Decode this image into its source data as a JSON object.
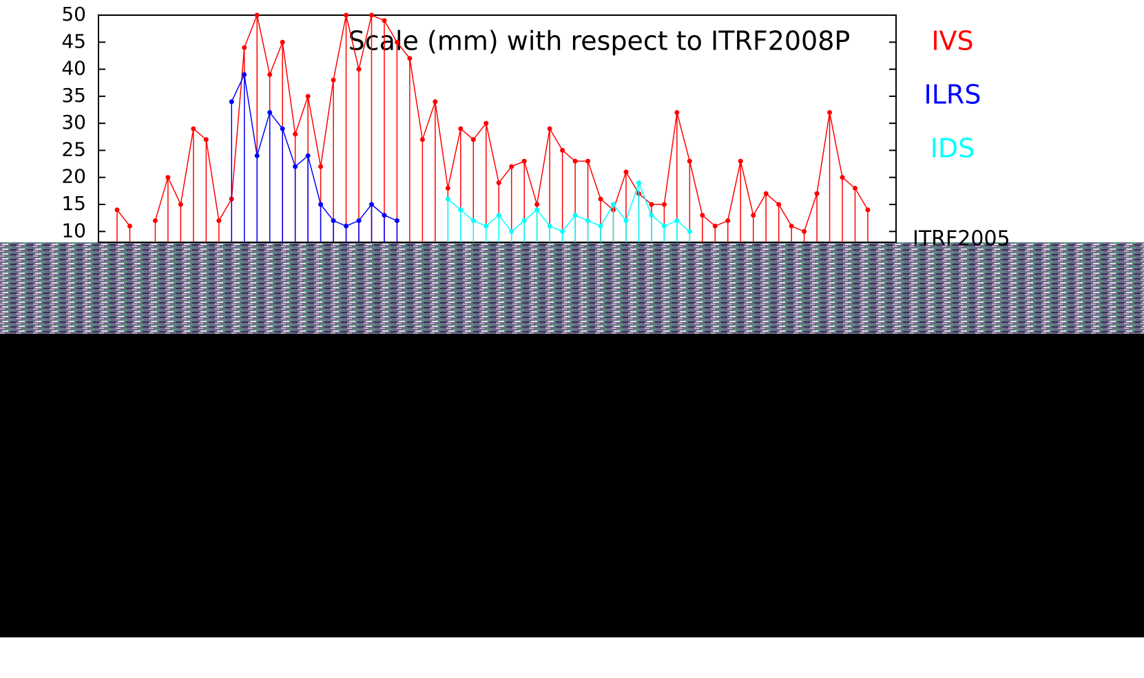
{
  "chart_data": {
    "type": "lollipop",
    "title": "Scale (mm) with respect to ITRF2008P",
    "annotation": "ITRF2005",
    "categories": [
      null,
      null,
      null,
      null,
      null,
      null,
      null,
      null,
      null,
      null,
      null,
      null,
      null,
      null,
      null,
      null,
      null,
      null,
      null,
      null,
      null,
      null,
      null,
      null,
      null,
      null,
      null,
      null,
      null,
      null,
      null,
      null,
      null,
      null,
      null,
      null,
      null,
      null,
      null,
      null,
      null,
      null,
      null,
      null,
      null,
      null,
      null,
      null,
      null,
      null,
      null,
      null,
      null,
      null,
      null,
      null,
      null,
      null,
      null,
      null
    ],
    "ylim": [
      8,
      50
    ],
    "yticks": [
      10,
      15,
      20,
      25,
      30,
      35,
      40,
      45,
      50
    ],
    "series": [
      {
        "name": "IVS",
        "color": "#ff0000",
        "values": [
          14,
          11,
          null,
          12,
          20,
          15,
          29,
          27,
          12,
          16,
          44,
          50,
          39,
          45,
          28,
          35,
          22,
          38,
          50,
          40,
          50,
          49,
          45,
          42,
          27,
          34,
          18,
          29,
          27,
          30,
          19,
          22,
          23,
          15,
          29,
          25,
          23,
          23,
          16,
          14,
          21,
          17,
          15,
          15,
          32,
          23,
          13,
          11,
          12,
          23,
          13,
          17,
          15,
          11,
          10,
          17,
          32,
          20,
          18,
          14
        ]
      },
      {
        "name": "ILRS",
        "color": "#0000ff",
        "values": [
          null,
          null,
          null,
          null,
          null,
          null,
          null,
          null,
          null,
          34,
          39,
          24,
          32,
          29,
          22,
          24,
          15,
          12,
          11,
          12,
          15,
          13,
          12,
          null,
          null,
          null,
          null,
          null,
          null,
          null,
          null,
          null,
          null,
          null,
          null,
          null,
          null,
          null,
          null,
          null,
          null,
          null,
          null,
          null,
          null,
          null,
          null,
          null,
          null,
          null,
          null,
          null,
          null,
          null,
          null,
          null,
          null,
          null,
          null,
          null
        ]
      },
      {
        "name": "IDS",
        "color": "#00ffff",
        "values": [
          null,
          null,
          null,
          null,
          null,
          null,
          null,
          null,
          null,
          null,
          null,
          null,
          null,
          null,
          null,
          null,
          null,
          null,
          null,
          null,
          null,
          null,
          null,
          null,
          null,
          null,
          16,
          14,
          12,
          11,
          13,
          10,
          12,
          14,
          11,
          10,
          13,
          12,
          11,
          15,
          12,
          19,
          13,
          11,
          12,
          10,
          null,
          null,
          null,
          null,
          null,
          null,
          null,
          null,
          null,
          null,
          null,
          null,
          null,
          null
        ]
      }
    ]
  }
}
